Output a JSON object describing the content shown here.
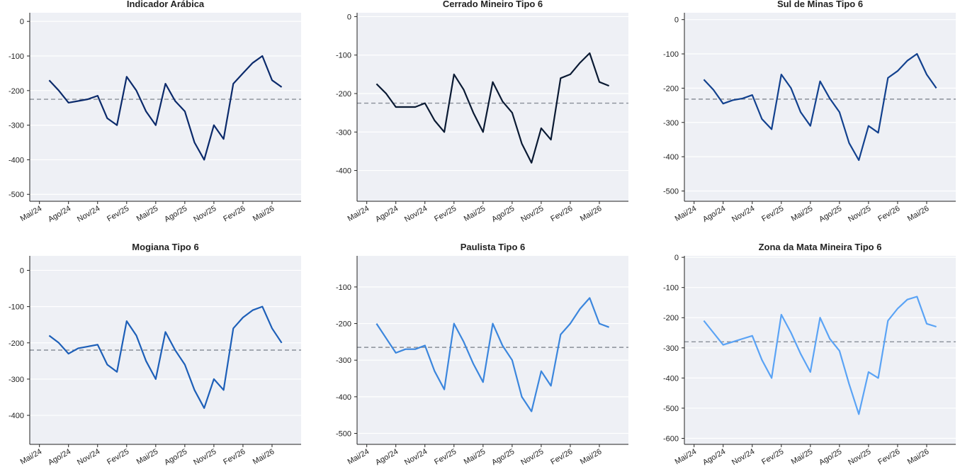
{
  "chart_data": [
    {
      "type": "line",
      "title": "Indicador Arábica",
      "color": "#0b2a6b",
      "reference_line": -225,
      "x": [
        "2024-06",
        "2024-07",
        "2024-08",
        "2024-09",
        "2024-10",
        "2024-11",
        "2024-12",
        "2025-01",
        "2025-02",
        "2025-03",
        "2025-04",
        "2025-05",
        "2025-06",
        "2025-07",
        "2025-08",
        "2025-09",
        "2025-10",
        "2025-11",
        "2025-12",
        "2026-01",
        "2026-02",
        "2026-03",
        "2026-04",
        "2026-05",
        "2026-06"
      ],
      "values": [
        -170,
        -200,
        -235,
        -230,
        -225,
        -215,
        -280,
        -300,
        -160,
        -200,
        -260,
        -300,
        -180,
        -230,
        -260,
        -350,
        -400,
        -300,
        -340,
        -180,
        -150,
        -120,
        -100,
        -170,
        -190
      ],
      "xlim": [
        "2024-04",
        "2026-08"
      ],
      "ylim": [
        -520,
        25
      ],
      "yticks": [
        0,
        -100,
        -200,
        -300,
        -400,
        -500
      ]
    },
    {
      "type": "line",
      "title": "Cerrado Mineiro Tipo 6",
      "color": "#0a1a33",
      "reference_line": -225,
      "x": [
        "2024-06",
        "2024-07",
        "2024-08",
        "2024-09",
        "2024-10",
        "2024-11",
        "2024-12",
        "2025-01",
        "2025-02",
        "2025-03",
        "2025-04",
        "2025-05",
        "2025-06",
        "2025-07",
        "2025-08",
        "2025-09",
        "2025-10",
        "2025-11",
        "2025-12",
        "2026-01",
        "2026-02",
        "2026-03",
        "2026-04",
        "2026-05",
        "2026-06"
      ],
      "values": [
        -175,
        -200,
        -235,
        -235,
        -235,
        -225,
        -270,
        -300,
        -150,
        -190,
        -250,
        -300,
        -170,
        -220,
        -250,
        -330,
        -380,
        -290,
        -320,
        -160,
        -150,
        -120,
        -95,
        -170,
        -180
      ],
      "xlim": [
        "2024-04",
        "2026-08"
      ],
      "ylim": [
        -480,
        10
      ],
      "yticks": [
        0,
        -100,
        -200,
        -300,
        -400
      ]
    },
    {
      "type": "line",
      "title": "Sul de Minas Tipo 6",
      "color": "#12418e",
      "reference_line": -232,
      "x": [
        "2024-06",
        "2024-07",
        "2024-08",
        "2024-09",
        "2024-10",
        "2024-11",
        "2024-12",
        "2025-01",
        "2025-02",
        "2025-03",
        "2025-04",
        "2025-05",
        "2025-06",
        "2025-07",
        "2025-08",
        "2025-09",
        "2025-10",
        "2025-11",
        "2025-12",
        "2026-01",
        "2026-02",
        "2026-03",
        "2026-04",
        "2026-05",
        "2026-06"
      ],
      "values": [
        -175,
        -205,
        -245,
        -235,
        -230,
        -220,
        -290,
        -320,
        -160,
        -200,
        -270,
        -310,
        -180,
        -230,
        -270,
        -360,
        -410,
        -310,
        -330,
        -170,
        -150,
        -120,
        -100,
        -160,
        -200
      ],
      "xlim": [
        "2024-04",
        "2026-08"
      ],
      "ylim": [
        -530,
        20
      ],
      "yticks": [
        0,
        -100,
        -200,
        -300,
        -400,
        -500
      ]
    },
    {
      "type": "line",
      "title": "Mogiana Tipo 6",
      "color": "#1d5fb8",
      "reference_line": -220,
      "x": [
        "2024-06",
        "2024-07",
        "2024-08",
        "2024-09",
        "2024-10",
        "2024-11",
        "2024-12",
        "2025-01",
        "2025-02",
        "2025-03",
        "2025-04",
        "2025-05",
        "2025-06",
        "2025-07",
        "2025-08",
        "2025-09",
        "2025-10",
        "2025-11",
        "2025-12",
        "2026-01",
        "2026-02",
        "2026-03",
        "2026-04",
        "2026-05",
        "2026-06"
      ],
      "values": [
        -180,
        -200,
        -230,
        -215,
        -210,
        -205,
        -260,
        -280,
        -140,
        -180,
        -250,
        -300,
        -170,
        -220,
        -260,
        -330,
        -380,
        -300,
        -330,
        -160,
        -130,
        -110,
        -100,
        -160,
        -200
      ],
      "xlim": [
        "2024-04",
        "2026-08"
      ],
      "ylim": [
        -480,
        40
      ],
      "yticks": [
        0,
        -100,
        -200,
        -300,
        -400
      ]
    },
    {
      "type": "line",
      "title": "Paulista Tipo 6",
      "color": "#3b86dd",
      "reference_line": -265,
      "x": [
        "2024-06",
        "2024-07",
        "2024-08",
        "2024-09",
        "2024-10",
        "2024-11",
        "2024-12",
        "2025-01",
        "2025-02",
        "2025-03",
        "2025-04",
        "2025-05",
        "2025-06",
        "2025-07",
        "2025-08",
        "2025-09",
        "2025-10",
        "2025-11",
        "2025-12",
        "2026-01",
        "2026-02",
        "2026-03",
        "2026-04",
        "2026-05",
        "2026-06"
      ],
      "values": [
        -200,
        -240,
        -280,
        -270,
        -270,
        -260,
        -330,
        -380,
        -200,
        -250,
        -310,
        -360,
        -200,
        -260,
        -300,
        -400,
        -440,
        -330,
        -370,
        -230,
        -200,
        -160,
        -130,
        -200,
        -210
      ],
      "xlim": [
        "2024-04",
        "2026-08"
      ],
      "ylim": [
        -530,
        -15
      ],
      "yticks": [
        -100,
        -200,
        -300,
        -400,
        -500
      ]
    },
    {
      "type": "line",
      "title": "Zona da Mata Mineira Tipo 6",
      "color": "#5aa3f5",
      "reference_line": -280,
      "x": [
        "2024-06",
        "2024-07",
        "2024-08",
        "2024-09",
        "2024-10",
        "2024-11",
        "2024-12",
        "2025-01",
        "2025-02",
        "2025-03",
        "2025-04",
        "2025-05",
        "2025-06",
        "2025-07",
        "2025-08",
        "2025-09",
        "2025-10",
        "2025-11",
        "2025-12",
        "2026-01",
        "2026-02",
        "2026-03",
        "2026-04",
        "2026-05",
        "2026-06"
      ],
      "values": [
        -210,
        -250,
        -290,
        -280,
        -270,
        -260,
        -340,
        -400,
        -190,
        -250,
        -320,
        -380,
        -200,
        -270,
        -310,
        -420,
        -520,
        -380,
        -400,
        -210,
        -170,
        -140,
        -130,
        -220,
        -230
      ],
      "xlim": [
        "2024-04",
        "2026-08"
      ],
      "ylim": [
        -620,
        5
      ],
      "yticks": [
        0,
        -100,
        -200,
        -300,
        -400,
        -500,
        -600
      ]
    }
  ],
  "xticks": [
    {
      "value": "2024-05",
      "label": "Mai/24"
    },
    {
      "value": "2024-08",
      "label": "Ago/24"
    },
    {
      "value": "2024-11",
      "label": "Nov/24"
    },
    {
      "value": "2025-02",
      "label": "Fev/25"
    },
    {
      "value": "2025-05",
      "label": "Mai/25"
    },
    {
      "value": "2025-08",
      "label": "Ago/25"
    },
    {
      "value": "2025-11",
      "label": "Nov/25"
    },
    {
      "value": "2026-02",
      "label": "Fev/26"
    },
    {
      "value": "2026-05",
      "label": "Mai/26"
    }
  ]
}
